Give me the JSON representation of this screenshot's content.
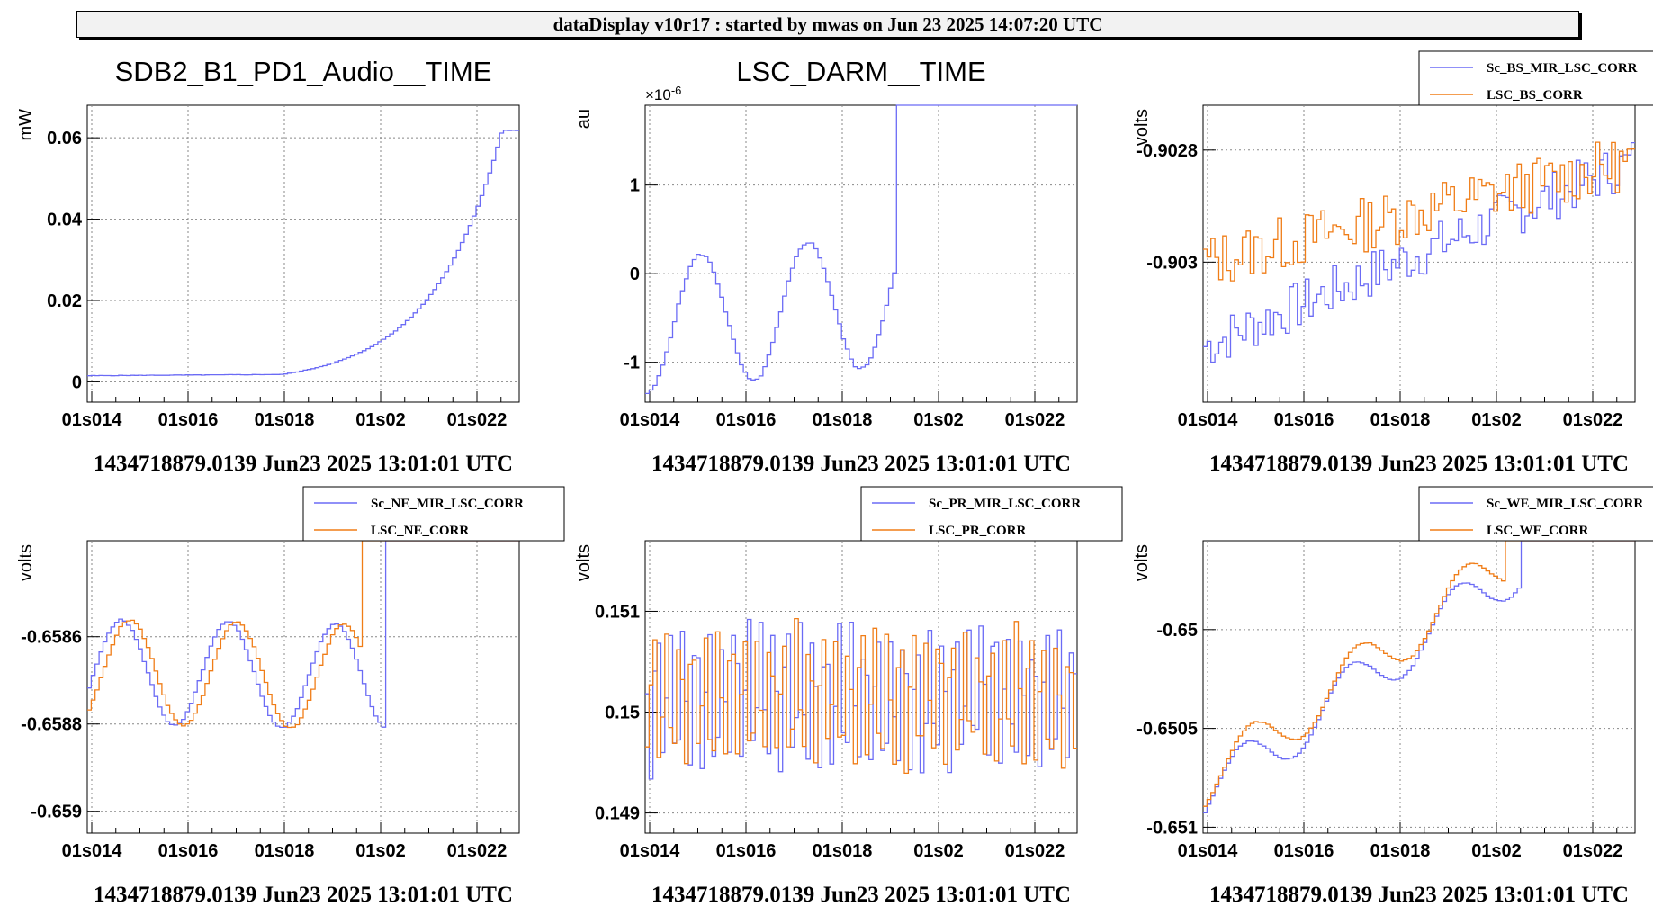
{
  "window": {
    "header": "dataDisplay v10r17 : started by mwas on Jun 23 2025 14:07:20 UTC"
  },
  "colors": {
    "blue": "#6b6bf5",
    "orange": "#f07d17"
  },
  "chart_data": [
    {
      "type": "line",
      "title": "SDB2_B1_PD1_Audio__TIME",
      "ylabel": "mW",
      "xlabel": "1434718879.0139 Jun23 2025 13:01:01 UTC",
      "xticks": [
        "01s014",
        "01s016",
        "01s018",
        "01s02",
        "01s022"
      ],
      "yticks": [
        "0",
        "0.02",
        "0.04",
        "0.06"
      ],
      "ylim": [
        -0.005,
        0.068
      ],
      "legend": null,
      "grid": true,
      "series": [
        {
          "color": "blue",
          "kind": "exp_rise",
          "start": 0.0015,
          "end": 0.0018,
          "rise_start": 0.45,
          "rise_end": 0.54,
          "plateau": 0.0618,
          "noise": 0.0001
        }
      ]
    },
    {
      "type": "line",
      "title": "LSC_DARM__TIME",
      "ylabel": "au",
      "multiplier": "×10-6",
      "xlabel": "1434718879.0139 Jun23 2025 13:01:01 UTC",
      "xticks": [
        "01s014",
        "01s016",
        "01s018",
        "01s02",
        "01s022"
      ],
      "yticks": [
        "-1",
        "0",
        "1"
      ],
      "ylim": [
        -1.45,
        1.9
      ],
      "legend": null,
      "grid": true,
      "series": [
        {
          "color": "blue",
          "kind": "sine_trend",
          "base": -0.6,
          "slope": 0.55,
          "amp": 0.75,
          "phase": 0.25,
          "clip": 1.9,
          "clip_after": 0.58,
          "noise": 0.03
        }
      ]
    },
    {
      "type": "line",
      "title": "",
      "ylabel": "volts",
      "xlabel": "1434718879.0139 Jun23 2025 13:01:01 UTC",
      "xticks": [
        "01s014",
        "01s016",
        "01s018",
        "01s02",
        "01s022"
      ],
      "yticks": [
        "-0.903",
        "-0.9028"
      ],
      "ylim": [
        -0.90325,
        -0.90272
      ],
      "legend": "top-right",
      "grid": true,
      "series": [
        {
          "name": "Sc_BS_MIR_LSC_CORR",
          "color": "blue",
          "kind": "noisy_trend",
          "start": -0.90315,
          "end": -0.90282,
          "noise": 4.5e-05,
          "seed": 7
        },
        {
          "name": "LSC_BS_CORR",
          "color": "orange",
          "kind": "noisy_trend",
          "start": -0.903,
          "end": -0.90282,
          "noise": 5e-05,
          "seed": 13
        }
      ]
    },
    {
      "type": "line",
      "title": "",
      "ylabel": "volts",
      "xlabel": "1434718879.0139 Jun23 2025 13:01:01 UTC",
      "xticks": [
        "01s014",
        "01s016",
        "01s018",
        "01s02",
        "01s022"
      ],
      "yticks": [
        "-0.659",
        "-0.6588",
        "-0.6586"
      ],
      "ylim": [
        -0.65905,
        -0.65838
      ],
      "legend": "top-right",
      "grid": true,
      "series": [
        {
          "name": "Sc_NE_MIR_LSC_CORR",
          "color": "blue",
          "kind": "sine_trend",
          "base": -0.65868,
          "slope": -2e-05,
          "amp": 0.00012,
          "phase": 0.05,
          "clip": -0.65838,
          "clip_after": 0.69,
          "noise": 4e-06
        },
        {
          "name": "LSC_NE_CORR",
          "color": "orange",
          "kind": "sine_trend",
          "base": -0.65868,
          "slope": -2e-05,
          "amp": 0.00012,
          "phase": 0.13,
          "clip": -0.65838,
          "clip_after": 0.64,
          "noise": 4e-06
        }
      ]
    },
    {
      "type": "line",
      "title": "",
      "ylabel": "volts",
      "xlabel": "1434718879.0139 Jun23 2025 13:01:01 UTC",
      "xticks": [
        "01s014",
        "01s016",
        "01s018",
        "01s02",
        "01s022"
      ],
      "yticks": [
        "0.149",
        "0.15",
        "0.151"
      ],
      "ylim": [
        0.1488,
        0.1517
      ],
      "legend": "top-right",
      "grid": true,
      "series": [
        {
          "name": "Sc_PR_MIR_LSC_CORR",
          "color": "blue",
          "kind": "osc",
          "center": 0.15015,
          "amp": 0.00085,
          "noise": 0.0002,
          "seed": 3
        },
        {
          "name": "LSC_PR_CORR",
          "color": "orange",
          "kind": "osc",
          "center": 0.15015,
          "amp": 0.0008,
          "noise": 0.0002,
          "seed": 11
        }
      ]
    },
    {
      "type": "line",
      "title": "",
      "ylabel": "volts",
      "xlabel": "1434718879.0139 Jun23 2025 13:01:01 UTC",
      "xticks": [
        "01s014",
        "01s016",
        "01s018",
        "01s02",
        "01s022"
      ],
      "yticks": [
        "-0.651",
        "-0.6505",
        "-0.65"
      ],
      "ylim": [
        -0.65103,
        -0.64955
      ],
      "legend": "top-right",
      "grid": true,
      "series": [
        {
          "name": "Sc_WE_MIR_LSC_CORR",
          "color": "blue",
          "kind": "sine_trend",
          "base": -0.65085,
          "slope": 0.0016,
          "amp": 0.00013,
          "phase": 0.1,
          "clip": -0.64955,
          "clip_after": 0.74,
          "noise": 6e-06
        },
        {
          "name": "LSC_WE_CORR",
          "color": "orange",
          "kind": "sine_trend",
          "base": -0.65078,
          "slope": 0.0016,
          "amp": 0.00013,
          "phase": 0.17,
          "clip": -0.64955,
          "clip_after": 0.7,
          "noise": 6e-06
        }
      ]
    }
  ]
}
